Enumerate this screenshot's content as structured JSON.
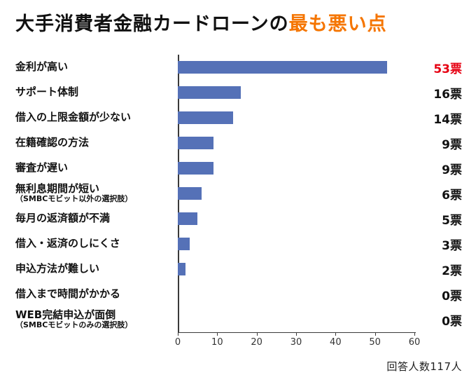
{
  "title": {
    "black": "大手消費者金融カードローンの",
    "orange": "最も悪い点"
  },
  "footer": "回答人数117人",
  "colors": {
    "bar": "#5571b7",
    "title_highlight": "#f57500",
    "vote_highlight": "#e60012",
    "text": "#111111"
  },
  "chart_data": {
    "type": "bar",
    "orientation": "horizontal",
    "title": "大手消費者金融カードローンの最も悪い点",
    "xlabel": "",
    "ylabel": "",
    "xlim": [
      0,
      60
    ],
    "ticks": [
      0,
      10,
      20,
      30,
      40,
      50,
      60
    ],
    "legend": false,
    "grid": false,
    "rows": [
      {
        "label": "金利が高い",
        "value": 53,
        "votes": "53票",
        "highlight": true
      },
      {
        "label": "サポート体制",
        "value": 16,
        "votes": "16票",
        "highlight": false
      },
      {
        "label": "借入の上限金額が少ない",
        "value": 14,
        "votes": "14票",
        "highlight": false
      },
      {
        "label": "在籍確認の方法",
        "value": 9,
        "votes": "9票",
        "highlight": false
      },
      {
        "label": "審査が遅い",
        "value": 9,
        "votes": "9票",
        "highlight": false
      },
      {
        "label": "無利息期間が短い",
        "sublabel": "（SMBCモビット以外の選択肢）",
        "value": 6,
        "votes": "6票",
        "highlight": false
      },
      {
        "label": "毎月の返済額が不満",
        "value": 5,
        "votes": "5票",
        "highlight": false
      },
      {
        "label": "借入・返済のしにくさ",
        "value": 3,
        "votes": "3票",
        "highlight": false
      },
      {
        "label": "申込方法が難しい",
        "value": 2,
        "votes": "2票",
        "highlight": false
      },
      {
        "label": "借入まで時間がかかる",
        "value": 0,
        "votes": "0票",
        "highlight": false
      },
      {
        "label": "WEB完結申込が面倒",
        "sublabel": "（SMBCモビットのみの選択肢）",
        "value": 0,
        "votes": "0票",
        "highlight": false
      }
    ]
  }
}
